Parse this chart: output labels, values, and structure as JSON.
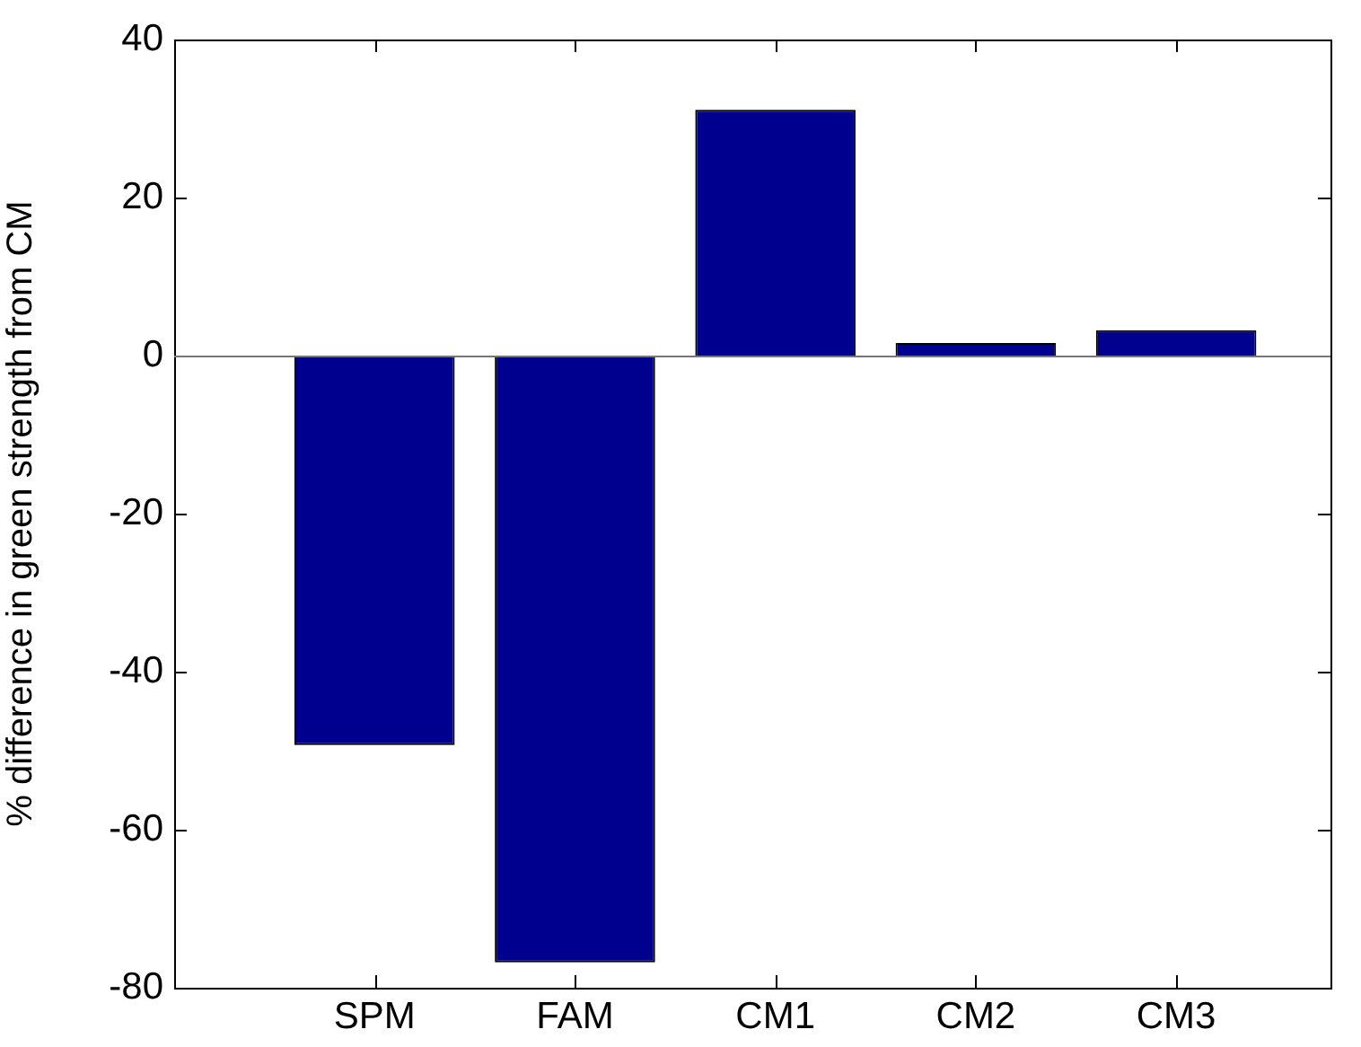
{
  "chart_data": {
    "type": "bar",
    "ylabel": "% difference in green strength from CM",
    "categories": [
      "SPM",
      "FAM",
      "CM1",
      "CM2",
      "CM3"
    ],
    "values": [
      -49.3,
      -76.8,
      31.1,
      1.6,
      3.2
    ],
    "color": "#00008f",
    "ylim": [
      -80,
      40
    ],
    "yticks": [
      -80,
      -60,
      -40,
      -20,
      0,
      20,
      40
    ],
    "legend": false
  }
}
